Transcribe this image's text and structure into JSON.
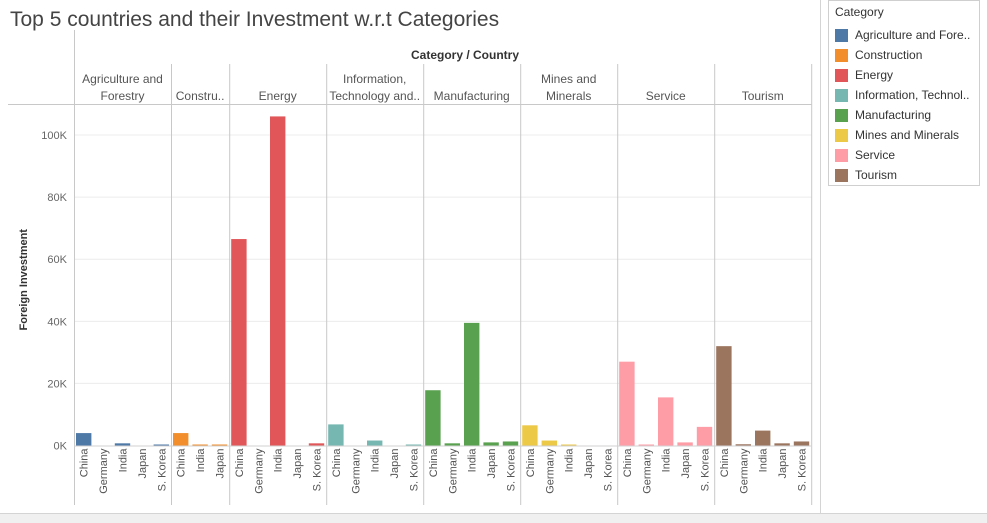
{
  "title": "Top 5 countries and their Investment w.r.t Categories",
  "legend": {
    "title": "Category",
    "items": [
      {
        "label": "Agriculture and Fore..",
        "color": "#4e79a7"
      },
      {
        "label": "Construction",
        "color": "#f28e2b"
      },
      {
        "label": "Energy",
        "color": "#e15759"
      },
      {
        "label": "Information, Technol..",
        "color": "#76b7b2"
      },
      {
        "label": "Manufacturing",
        "color": "#59a14f"
      },
      {
        "label": "Mines and Minerals",
        "color": "#edc948"
      },
      {
        "label": "Service",
        "color": "#ff9da7"
      },
      {
        "label": "Tourism",
        "color": "#9c755f"
      }
    ]
  },
  "chart_data": {
    "type": "bar",
    "header": "Category / Country",
    "ylabel": "Foreign Investment",
    "ylim": [
      0,
      110000
    ],
    "yticks": [
      0,
      20000,
      40000,
      60000,
      80000,
      100000
    ],
    "ytick_labels": [
      "0K",
      "20K",
      "40K",
      "60K",
      "80K",
      "100K"
    ],
    "grid": true,
    "legend_position": "right",
    "panes": [
      {
        "category": "Agriculture and Forestry",
        "header_lines": [
          "Agriculture and",
          "Forestry"
        ],
        "color": "#4e79a7",
        "countries": [
          "China",
          "Germany",
          "India",
          "Japan",
          "S. Korea"
        ],
        "values": [
          4000,
          0,
          700,
          0,
          300
        ]
      },
      {
        "category": "Construction",
        "header_lines": [
          "Constru.."
        ],
        "color": "#f28e2b",
        "countries": [
          "China",
          "India",
          "Japan"
        ],
        "values": [
          4000,
          300,
          100
        ]
      },
      {
        "category": "Energy",
        "header_lines": [
          "Energy"
        ],
        "color": "#e15759",
        "countries": [
          "China",
          "Germany",
          "India",
          "Japan",
          "S. Korea"
        ],
        "values": [
          66500,
          0,
          106000,
          0,
          700
        ]
      },
      {
        "category": "Information, Technology and..",
        "header_lines": [
          "Information,",
          "Technology and.."
        ],
        "color": "#76b7b2",
        "countries": [
          "China",
          "Germany",
          "India",
          "Japan",
          "S. Korea"
        ],
        "values": [
          6800,
          0,
          1600,
          0,
          300
        ]
      },
      {
        "category": "Manufacturing",
        "header_lines": [
          "Manufacturing"
        ],
        "color": "#59a14f",
        "countries": [
          "China",
          "Germany",
          "India",
          "Japan",
          "S. Korea"
        ],
        "values": [
          17800,
          700,
          39500,
          1000,
          1300
        ]
      },
      {
        "category": "Mines and Minerals",
        "header_lines": [
          "Mines and",
          "Minerals"
        ],
        "color": "#edc948",
        "countries": [
          "China",
          "Germany",
          "India",
          "Japan",
          "S. Korea"
        ],
        "values": [
          6500,
          1600,
          300,
          0,
          0
        ]
      },
      {
        "category": "Service",
        "header_lines": [
          "Service"
        ],
        "color": "#ff9da7",
        "countries": [
          "China",
          "Germany",
          "India",
          "Japan",
          "S. Korea"
        ],
        "values": [
          27000,
          300,
          15500,
          1000,
          6000
        ]
      },
      {
        "category": "Tourism",
        "header_lines": [
          "Tourism"
        ],
        "color": "#9c755f",
        "countries": [
          "China",
          "Germany",
          "India",
          "Japan",
          "S. Korea"
        ],
        "values": [
          32000,
          400,
          4800,
          700,
          1300
        ]
      }
    ]
  }
}
